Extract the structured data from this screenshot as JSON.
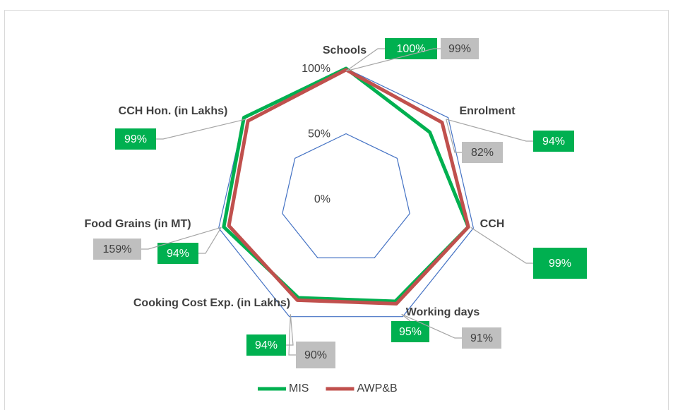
{
  "chart_data": {
    "type": "radar",
    "categories": [
      "Schools",
      "Enrolment",
      "CCH",
      "Working days",
      "Cooking Cost Exp. (in Lakhs)",
      "Food Grains (in MT)",
      "CCH Hon. (in Lakhs)"
    ],
    "series": [
      {
        "name": "MIS",
        "color": "#00b050",
        "values": [
          100,
          82,
          96,
          87,
          84,
          96,
          100
        ]
      },
      {
        "name": "AWP&B",
        "color": "#c0504d",
        "values": [
          99,
          94,
          96,
          89,
          86,
          92,
          96
        ]
      }
    ],
    "rlim": [
      0,
      100
    ],
    "rticks": [
      {
        "value": 0,
        "label": "0%"
      },
      {
        "value": 50,
        "label": "50%"
      },
      {
        "value": 100,
        "label": "100%"
      }
    ],
    "grid_color": "#4472c4",
    "annotations": [
      {
        "text": "100%",
        "color": "#00b050"
      },
      {
        "text": "99%",
        "color": "#bfbfbf"
      },
      {
        "text": "94%",
        "color": "#00b050"
      },
      {
        "text": "82%",
        "color": "#bfbfbf"
      },
      {
        "text": "99%",
        "color": "#00b050"
      },
      {
        "text": "95%",
        "color": "#00b050"
      },
      {
        "text": "91%",
        "color": "#bfbfbf"
      },
      {
        "text": "90%",
        "color": "#bfbfbf"
      },
      {
        "text": "94%",
        "color": "#00b050"
      },
      {
        "text": "94%",
        "color": "#00b050"
      },
      {
        "text": "159%",
        "color": "#bfbfbf"
      },
      {
        "text": "99%",
        "color": "#00b050"
      }
    ],
    "legend": "bottom"
  }
}
